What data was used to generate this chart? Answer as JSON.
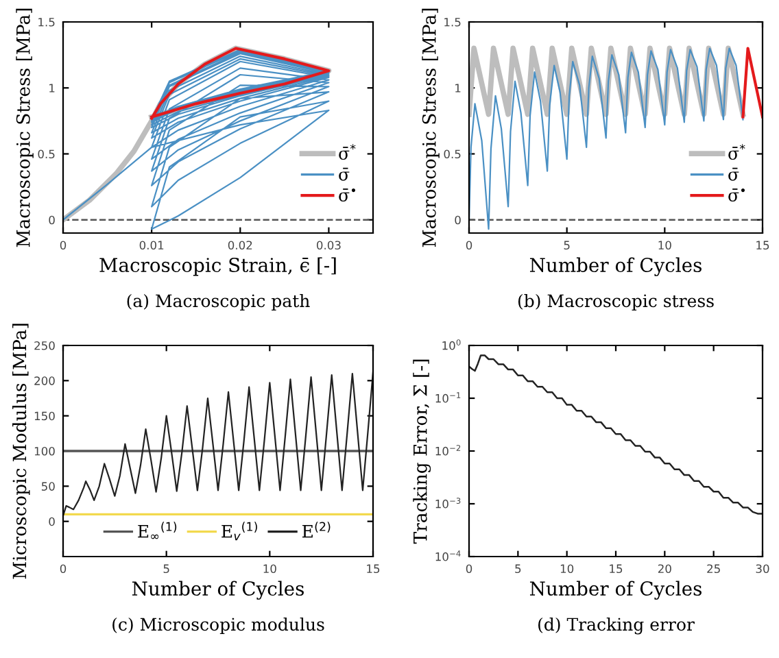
{
  "chart_data": [
    {
      "type": "line",
      "xlabel": "Macroscopic Strain, ϵ̄ [-]",
      "ylabel": "Macroscopic Stress [MPa]",
      "annotations": [
        "(a) Macroscopic path"
      ],
      "xlim": [
        0,
        0.035
      ],
      "ylim": [
        -0.1,
        1.5
      ],
      "xticks": [
        0,
        0.01,
        0.02,
        0.03
      ],
      "yticks": [
        0,
        0.5,
        1,
        1.5
      ],
      "legend": "bottom right",
      "ref_lines": [
        {
          "axis": "y",
          "value": 0,
          "color": "#555555",
          "line_style": "dashed"
        }
      ],
      "series": [
        {
          "name": "σ̄$^{*}$",
          "color": "#bdbdbd",
          "x": [
            0,
            0.003,
            0.006,
            0.008,
            0.01,
            0.011,
            0.013,
            0.016,
            0.0195,
            0.025,
            0.03,
            0.025,
            0.02,
            0.015,
            0.01
          ],
          "values": [
            0,
            0.15,
            0.35,
            0.52,
            0.75,
            0.88,
            1.03,
            1.18,
            1.3,
            1.22,
            1.13,
            1.03,
            0.96,
            0.88,
            0.78
          ]
        },
        {
          "name": "σ̄",
          "color": "#4a90c4",
          "x": [
            0,
            0.005,
            0.01,
            0.02,
            0.03,
            0.02,
            0.013,
            0.01,
            0.012,
            0.02,
            0.03,
            0.02,
            0.013,
            0.01,
            0.012,
            0.02,
            0.03,
            0.02,
            0.013,
            0.01,
            0.012,
            0.02,
            0.03,
            0.02,
            0.013,
            0.01,
            0.012,
            0.02,
            0.03,
            0.02,
            0.013,
            0.01,
            0.012,
            0.02,
            0.03,
            0.02,
            0.013,
            0.01,
            0.012,
            0.02,
            0.03,
            0.02,
            0.013,
            0.01,
            0.012,
            0.02,
            0.03,
            0.02,
            0.013,
            0.01,
            0.012,
            0.02,
            0.03,
            0.02,
            0.013,
            0.01,
            0.012,
            0.02,
            0.03,
            0.02,
            0.013,
            0.01,
            0.012,
            0.02,
            0.03,
            0.02,
            0.013,
            0.01,
            0.012,
            0.02,
            0.03,
            0.02,
            0.013,
            0.01,
            0.012,
            0.02,
            0.03,
            0.02,
            0.013,
            0.01,
            0.012,
            0.02,
            0.03,
            0.02,
            0.013,
            0.01
          ],
          "values": [
            0,
            0.27,
            0.55,
            0.72,
            0.83,
            0.32,
            0.03,
            -0.07,
            0.4,
            0.78,
            0.9,
            0.58,
            0.3,
            0.1,
            0.55,
            0.92,
            0.97,
            0.69,
            0.44,
            0.26,
            0.68,
            1.02,
            1.01,
            0.75,
            0.53,
            0.37,
            0.77,
            1.1,
            1.04,
            0.81,
            0.61,
            0.46,
            0.84,
            1.15,
            1.06,
            0.86,
            0.68,
            0.55,
            0.91,
            1.2,
            1.08,
            0.9,
            0.74,
            0.62,
            0.95,
            1.22,
            1.09,
            0.92,
            0.77,
            0.66,
            0.98,
            1.24,
            1.1,
            0.94,
            0.8,
            0.7,
            1.01,
            1.26,
            1.11,
            0.95,
            0.82,
            0.72,
            1.02,
            1.27,
            1.12,
            0.97,
            0.84,
            0.74,
            1.04,
            1.28,
            1.12,
            0.97,
            0.84,
            0.75,
            1.05,
            1.29,
            1.13,
            0.98,
            0.85,
            0.76,
            1.05,
            1.29,
            1.13,
            0.99,
            0.86,
            0.77
          ]
        },
        {
          "name": "σ̄$^{•}$",
          "color": "#e41a1c",
          "x": [
            0.01,
            0.011,
            0.013,
            0.016,
            0.0195,
            0.025,
            0.03,
            0.025,
            0.02,
            0.015,
            0.01
          ],
          "values": [
            0.77,
            0.88,
            1.03,
            1.18,
            1.3,
            1.22,
            1.13,
            1.03,
            0.96,
            0.88,
            0.78
          ]
        }
      ]
    },
    {
      "type": "line",
      "xlabel": "Number of Cycles",
      "ylabel": "Macroscopic Stress [MPa]",
      "annotations": [
        "(b) Macroscopic stress"
      ],
      "xlim": [
        0,
        15
      ],
      "ylim": [
        -0.1,
        1.5
      ],
      "xticks": [
        0,
        5,
        10,
        15
      ],
      "yticks": [
        0,
        0.5,
        1,
        1.5
      ],
      "legend": "bottom right",
      "ref_lines": [
        {
          "axis": "y",
          "value": 0,
          "color": "#555555",
          "line_style": "dashed"
        }
      ],
      "series": [
        {
          "name": "σ̄$^{*}$",
          "color": "#bdbdbd",
          "x": [
            0,
            0.25,
            1,
            1.25,
            2,
            2.25,
            3,
            3.25,
            4,
            4.25,
            5,
            5.25,
            6,
            6.25,
            7,
            7.25,
            8,
            8.25,
            9,
            9.25,
            10,
            10.25,
            11,
            11.25,
            12,
            12.25,
            13,
            13.25,
            14
          ],
          "values": [
            0.8,
            1.3,
            0.8,
            1.3,
            0.8,
            1.3,
            0.8,
            1.3,
            0.8,
            1.3,
            0.8,
            1.3,
            0.8,
            1.3,
            0.8,
            1.3,
            0.8,
            1.3,
            0.8,
            1.3,
            0.8,
            1.3,
            0.8,
            1.3,
            0.8,
            1.3,
            0.8,
            1.3,
            0.8
          ]
        },
        {
          "name": "σ̄",
          "color": "#4a90c4",
          "x": [
            0,
            0.1,
            0.3,
            0.65,
            1,
            1.12,
            1.35,
            1.65,
            2,
            2.12,
            2.35,
            2.65,
            3,
            3.12,
            3.35,
            3.65,
            4,
            4.12,
            4.35,
            4.65,
            5,
            5.12,
            5.3,
            5.65,
            6,
            6.12,
            6.3,
            6.65,
            7,
            7.12,
            7.3,
            7.65,
            8,
            8.12,
            8.3,
            8.65,
            9,
            9.12,
            9.3,
            9.65,
            10,
            10.12,
            10.3,
            10.65,
            11,
            11.12,
            11.3,
            11.65,
            12,
            12.12,
            12.3,
            12.65,
            13,
            13.12,
            13.3,
            13.65,
            14
          ],
          "values": [
            0,
            0.55,
            0.88,
            0.6,
            -0.07,
            0.54,
            0.94,
            0.69,
            0.1,
            0.67,
            1.05,
            0.81,
            0.26,
            0.79,
            1.12,
            0.9,
            0.37,
            0.87,
            1.17,
            0.97,
            0.46,
            0.94,
            1.2,
            1.02,
            0.55,
            1.0,
            1.24,
            1.07,
            0.62,
            1.05,
            1.25,
            1.1,
            0.66,
            1.08,
            1.27,
            1.12,
            0.7,
            1.1,
            1.28,
            1.14,
            0.72,
            1.12,
            1.29,
            1.15,
            0.74,
            1.13,
            1.29,
            1.16,
            0.75,
            1.14,
            1.3,
            1.17,
            0.76,
            1.15,
            1.3,
            1.17,
            0.76
          ]
        },
        {
          "name": "σ̄$^{•}$",
          "color": "#e41a1c",
          "x": [
            14,
            14.25,
            15
          ],
          "values": [
            0.78,
            1.3,
            0.78
          ]
        }
      ]
    },
    {
      "type": "line",
      "xlabel": "Number of Cycles",
      "ylabel": "Microscopic Modulus [MPa]",
      "annotations": [
        "(c) Microscopic modulus"
      ],
      "xlim": [
        0,
        15
      ],
      "ylim": [
        -50,
        250
      ],
      "xticks": [
        0,
        5,
        10,
        15
      ],
      "yticks": [
        0,
        50,
        100,
        150,
        200,
        250
      ],
      "legend": "bottom",
      "series": [
        {
          "name": "E$_{∞}$$^{(1)}$",
          "color": "#555555",
          "x": [
            0,
            15
          ],
          "values": [
            100,
            100
          ]
        },
        {
          "name": "E$_{v}$$^{(1)}$",
          "color": "#f2d94e",
          "x": [
            0,
            15
          ],
          "values": [
            10,
            10
          ]
        },
        {
          "name": "E$^{(2)}$",
          "color": "#222222",
          "x": [
            0,
            0.15,
            0.3,
            0.5,
            0.75,
            1,
            1.1,
            1.3,
            1.5,
            1.75,
            2,
            2.25,
            2.5,
            2.75,
            3,
            3.25,
            3.5,
            3.75,
            4,
            4.25,
            4.5,
            4.75,
            5,
            5.25,
            5.5,
            5.75,
            6,
            6.25,
            6.5,
            6.75,
            7,
            7.25,
            7.5,
            7.75,
            8,
            8.25,
            8.5,
            8.75,
            9,
            9.25,
            9.5,
            9.75,
            10,
            10.25,
            10.5,
            10.75,
            11,
            11.25,
            11.5,
            11.75,
            12,
            12.25,
            12.5,
            12.75,
            13,
            13.25,
            13.5,
            13.75,
            14,
            14.25,
            14.5,
            14.75,
            15
          ],
          "values": [
            8,
            22,
            20,
            17,
            30,
            48,
            57,
            45,
            30,
            50,
            82,
            60,
            36,
            65,
            110,
            75,
            40,
            80,
            131,
            88,
            42,
            90,
            150,
            98,
            43,
            98,
            164,
            104,
            44,
            104,
            175,
            110,
            44,
            110,
            184,
            114,
            44,
            114,
            191,
            118,
            44,
            118,
            197,
            121,
            44,
            121,
            202,
            123,
            44,
            123,
            205,
            125,
            44,
            125,
            208,
            126,
            44,
            126,
            210,
            127,
            44,
            127,
            212
          ]
        }
      ]
    },
    {
      "type": "line",
      "xlabel": "Number of Cycles",
      "ylabel": "Tracking Error, Σ [-]",
      "annotations": [
        "(d) Tracking error"
      ],
      "log": "y",
      "xlim": [
        0,
        30
      ],
      "ylim": [
        0.0001,
        1
      ],
      "xticks": [
        0,
        5,
        10,
        15,
        20,
        25,
        30
      ],
      "yticks": [
        {
          "value": 0.0001,
          "label": "10$^{−4}$"
        },
        {
          "value": 0.001,
          "label": "10$^{−3}$"
        },
        {
          "value": 0.01,
          "label": "10$^{−2}$"
        },
        {
          "value": 0.1,
          "label": "10$^{−1}$"
        },
        {
          "value": 1,
          "label": "10$^{0}$"
        }
      ],
      "series": [
        {
          "color": "#222222",
          "x": [
            0,
            0.3,
            0.6,
            0.9,
            1.2,
            1.6,
            2,
            2.5,
            3,
            3.5,
            4,
            4.5,
            5,
            5.5,
            6,
            6.5,
            7,
            7.5,
            8,
            8.5,
            9,
            9.5,
            10,
            10.5,
            11,
            11.5,
            12,
            12.5,
            13,
            13.5,
            14,
            14.5,
            15,
            15.5,
            16,
            16.5,
            17,
            17.5,
            18,
            18.5,
            19,
            19.5,
            20,
            20.5,
            21,
            21.5,
            22,
            22.5,
            23,
            23.5,
            24,
            24.5,
            25,
            25.5,
            26,
            26.5,
            27,
            27.5,
            28,
            28.5,
            29,
            29.5,
            30
          ],
          "values": [
            0.4,
            0.36,
            0.33,
            0.45,
            0.65,
            0.65,
            0.55,
            0.55,
            0.44,
            0.44,
            0.35,
            0.35,
            0.27,
            0.27,
            0.21,
            0.21,
            0.165,
            0.165,
            0.13,
            0.13,
            0.1,
            0.1,
            0.075,
            0.075,
            0.058,
            0.058,
            0.045,
            0.045,
            0.035,
            0.035,
            0.027,
            0.027,
            0.021,
            0.021,
            0.016,
            0.016,
            0.0125,
            0.0125,
            0.0097,
            0.0097,
            0.0075,
            0.0075,
            0.0058,
            0.0058,
            0.0045,
            0.0045,
            0.0035,
            0.0035,
            0.0027,
            0.0027,
            0.0021,
            0.0021,
            0.0017,
            0.0017,
            0.0013,
            0.0013,
            0.00105,
            0.00105,
            0.00085,
            0.00085,
            0.0007,
            0.00065,
            0.00065
          ]
        }
      ]
    }
  ]
}
